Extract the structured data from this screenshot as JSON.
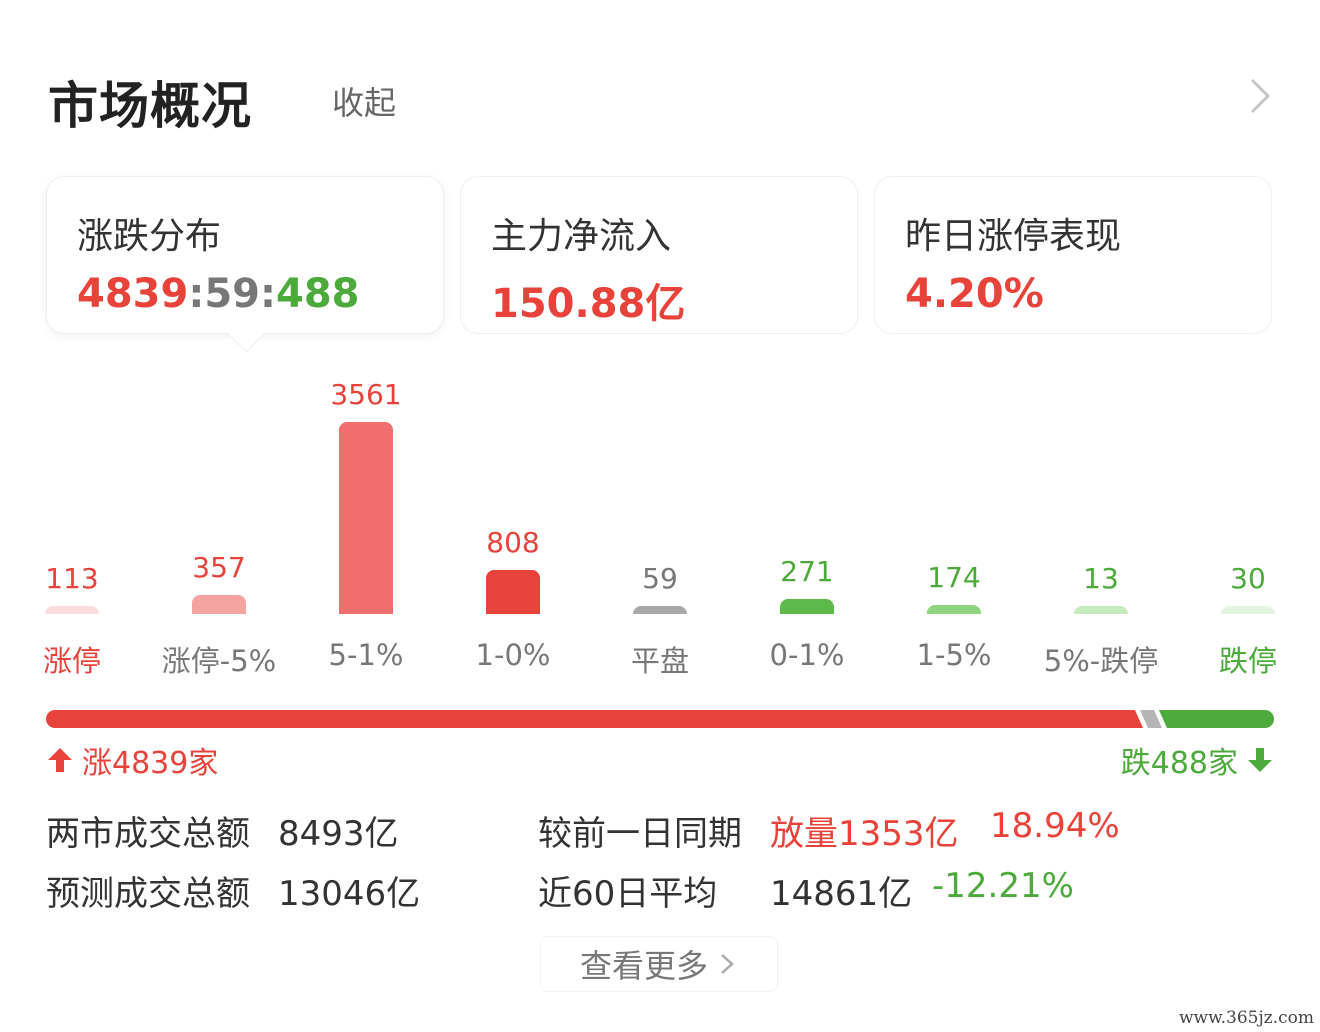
{
  "header": {
    "title": "市场概况",
    "collapse_label": "收起"
  },
  "cards": [
    {
      "label": "涨跌分布",
      "ratio": {
        "up": "4839",
        "sep1": ":",
        "flat": "59",
        "sep2": ":",
        "down": "488"
      }
    },
    {
      "label": "主力净流入",
      "value": "150.88亿"
    },
    {
      "label": "昨日涨停表现",
      "value": "4.20%"
    }
  ],
  "chart_data": {
    "type": "bar",
    "categories": [
      "涨停",
      "涨停-5%",
      "5-1%",
      "1-0%",
      "平盘",
      "0-1%",
      "1-5%",
      "5%-跌停",
      "跌停"
    ],
    "values": [
      113,
      357,
      3561,
      808,
      59,
      271,
      174,
      13,
      30
    ],
    "bar_colors": [
      "#fbdcdc",
      "#f4a3a1",
      "#f06e6b",
      "#e8433a",
      "#a8a8a8",
      "#5cb94a",
      "#8fd47f",
      "#c5ebbd",
      "#e2f5de"
    ],
    "value_colors": [
      "#e8433a",
      "#e8433a",
      "#e8433a",
      "#e8433a",
      "#777777",
      "#4caa3a",
      "#4caa3a",
      "#4caa3a",
      "#4caa3a"
    ],
    "category_colors": [
      "#e8433a",
      "#777777",
      "#777777",
      "#777777",
      "#777777",
      "#777777",
      "#777777",
      "#777777",
      "#4caa3a"
    ]
  },
  "progress": {
    "up_count": 4839,
    "flat_count": 59,
    "down_count": 488,
    "up_label": "涨4839家",
    "down_label": "跌488家",
    "colors": {
      "up": "#e8433a",
      "flat": "#b5b5b5",
      "down": "#4caa3a"
    }
  },
  "stats": {
    "turnover_label": "两市成交总额",
    "turnover_value": "8493亿",
    "forecast_label": "预测成交总额",
    "forecast_value": "13046亿",
    "compare_label": "较前一日同期",
    "compare_value": "放量1353亿",
    "compare_pct": "18.94%",
    "avg_label": "近60日平均",
    "avg_value": "14861亿",
    "avg_pct": "-12.21%"
  },
  "more_label": "查看更多",
  "watermark": "www.365jz.com"
}
